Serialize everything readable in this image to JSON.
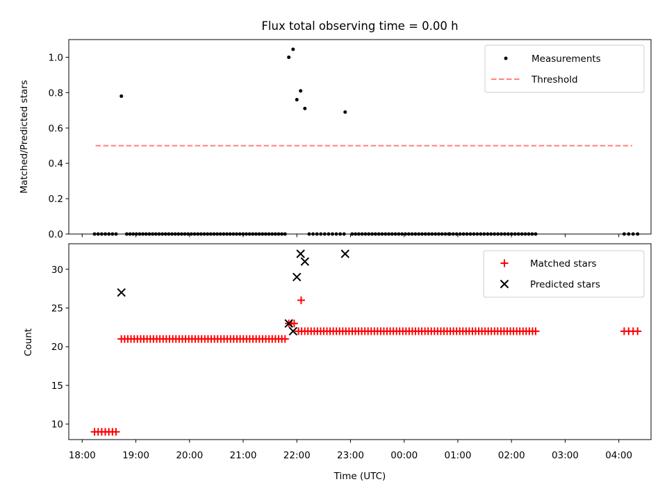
{
  "chart_data": {
    "title": "Flux total observing time = 0.00 h",
    "xlabel": "Time (UTC)",
    "x_unit": "hours (18 = 18:00, 24 = 00:00 next day)",
    "xlim": [
      17.75,
      28.6
    ],
    "x_ticks": [
      {
        "x": 18,
        "label": "18:00"
      },
      {
        "x": 19,
        "label": "19:00"
      },
      {
        "x": 20,
        "label": "20:00"
      },
      {
        "x": 21,
        "label": "21:00"
      },
      {
        "x": 22,
        "label": "22:00"
      },
      {
        "x": 23,
        "label": "23:00"
      },
      {
        "x": 24,
        "label": "00:00"
      },
      {
        "x": 25,
        "label": "01:00"
      },
      {
        "x": 26,
        "label": "02:00"
      },
      {
        "x": 27,
        "label": "03:00"
      },
      {
        "x": 28,
        "label": "04:00"
      }
    ],
    "top": {
      "type": "scatter",
      "ylabel": "Matched/Predicted stars",
      "ylim": [
        0,
        1.1
      ],
      "y_ticks": [
        "0.0",
        "0.2",
        "0.4",
        "0.6",
        "0.8",
        "1.0"
      ],
      "legend": {
        "position": "top-right",
        "entries": [
          "Measurements",
          "Threshold"
        ]
      },
      "measurements": {
        "name": "Measurements",
        "color": "#000000",
        "zero_segments": [
          {
            "start": 18.23,
            "end": 18.63,
            "n": 7
          },
          {
            "start": 18.83,
            "end": 21.78,
            "n": 50
          },
          {
            "start": 22.23,
            "end": 22.88,
            "n": 10
          },
          {
            "start": 23.03,
            "end": 24.83,
            "n": 30
          },
          {
            "start": 24.85,
            "end": 26.45,
            "n": 26
          },
          {
            "start": 28.1,
            "end": 28.35,
            "n": 4
          }
        ],
        "points": [
          {
            "x": 18.73,
            "y": 0.78
          },
          {
            "x": 21.85,
            "y": 1.0
          },
          {
            "x": 21.93,
            "y": 1.045
          },
          {
            "x": 22.0,
            "y": 0.76
          },
          {
            "x": 22.07,
            "y": 0.81
          },
          {
            "x": 22.15,
            "y": 0.71
          },
          {
            "x": 22.9,
            "y": 0.69
          }
        ]
      },
      "threshold": {
        "name": "Threshold",
        "y": 0.5,
        "x_start": 18.25,
        "x_end": 28.25,
        "color": "#ff7f7f"
      }
    },
    "bottom": {
      "type": "scatter",
      "ylabel": "Count",
      "ylim": [
        8,
        33.3
      ],
      "y_ticks": [
        "10",
        "15",
        "20",
        "25",
        "30"
      ],
      "legend": {
        "position": "top-right",
        "entries": [
          "Matched stars",
          "Predicted stars"
        ]
      },
      "matched": {
        "name": "Matched stars",
        "color": "#ff0000",
        "segments": [
          {
            "start": 18.23,
            "end": 18.63,
            "n": 7,
            "y": 9
          },
          {
            "start": 18.73,
            "end": 21.78,
            "n": 52,
            "y": 21
          },
          {
            "start": 21.85,
            "end": 21.95,
            "n": 3,
            "y": 23
          },
          {
            "start": 22.03,
            "end": 26.45,
            "n": 76,
            "y": 22
          },
          {
            "start": 28.1,
            "end": 28.35,
            "n": 4,
            "y": 22
          }
        ],
        "points": [
          {
            "x": 22.08,
            "y": 26
          }
        ]
      },
      "predicted": {
        "name": "Predicted stars",
        "color": "#000000",
        "points": [
          {
            "x": 18.73,
            "y": 27
          },
          {
            "x": 21.85,
            "y": 23
          },
          {
            "x": 21.93,
            "y": 22
          },
          {
            "x": 22.0,
            "y": 29
          },
          {
            "x": 22.07,
            "y": 32
          },
          {
            "x": 22.15,
            "y": 31
          },
          {
            "x": 22.9,
            "y": 32
          }
        ]
      }
    }
  }
}
